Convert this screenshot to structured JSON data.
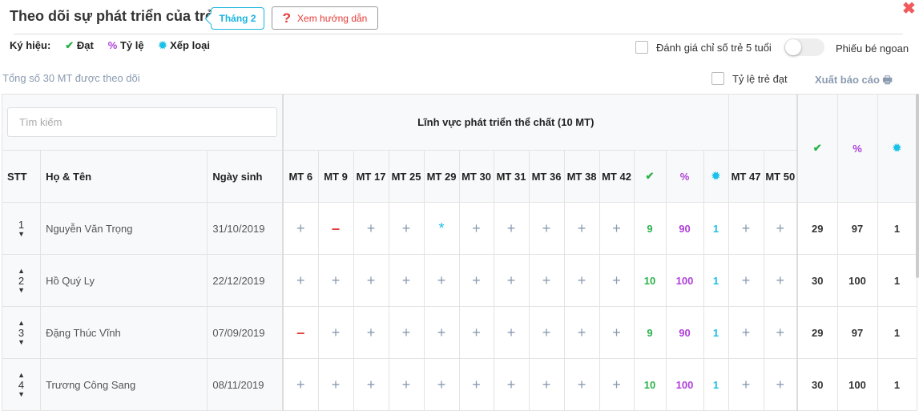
{
  "header": {
    "title": "Theo dõi sự phát triển của trẻ",
    "month": "Tháng 2",
    "guide_icon": "?",
    "guide": "Xem hướng dẫn",
    "close": "✖"
  },
  "legend": {
    "label": "Ký hiệu:",
    "dat_icon": "✔",
    "dat": "Đạt",
    "tyle_icon": "%",
    "tyle": "Tỷ lệ",
    "xeploai_icon": "✹",
    "xeploai": "Xếp loại"
  },
  "total": "Tổng số 30 MT được theo dõi",
  "options": {
    "chk5": "Đánh giá chỉ số trẻ 5 tuổi",
    "ngoan": "Phiếu bé ngoan",
    "ratio": "Tỷ lệ trẻ đạt",
    "export": "Xuất báo cáo",
    "export_icon": "🖶"
  },
  "colors": {
    "green": "#2bb24c",
    "purple": "#b040d8",
    "cyan": "#19c0e8",
    "red": "#e53935"
  },
  "table": {
    "search_placeholder": "Tìm kiếm",
    "group": "Lĩnh vực phát triển thể chất (10 MT)",
    "cols": {
      "stt": "STT",
      "name": "Họ & Tên",
      "dob": "Ngày sinh"
    },
    "mt": [
      "MT 6",
      "MT 9",
      "MT 17",
      "MT 25",
      "MT 29",
      "MT 30",
      "MT 31",
      "MT 36",
      "MT 38",
      "MT 42"
    ],
    "mt2": [
      "MT 47",
      "MT 50"
    ],
    "sym": {
      "check": "✔",
      "pct": "%",
      "star": "✹"
    },
    "rows": [
      {
        "stt": "1",
        "name": "Nguyễn Văn Trọng",
        "dob": "31/10/2019",
        "marks": [
          "+",
          "-",
          "+",
          "+",
          "*",
          "+",
          "+",
          "+",
          "+",
          "+"
        ],
        "dat": "9",
        "pct": "90",
        "xl": "1",
        "marks2": [
          "+",
          "+"
        ],
        "t_dat": "29",
        "t_pct": "97",
        "t_xl": "1",
        "up": false
      },
      {
        "stt": "2",
        "name": "Hồ Quý Ly",
        "dob": "22/12/2019",
        "marks": [
          "+",
          "+",
          "+",
          "+",
          "+",
          "+",
          "+",
          "+",
          "+",
          "+"
        ],
        "dat": "10",
        "pct": "100",
        "xl": "1",
        "marks2": [
          "+",
          "+"
        ],
        "t_dat": "30",
        "t_pct": "100",
        "t_xl": "1",
        "up": true
      },
      {
        "stt": "3",
        "name": "Đặng Thúc Vĩnh",
        "dob": "07/09/2019",
        "marks": [
          "-",
          "+",
          "+",
          "+",
          "+",
          "+",
          "+",
          "+",
          "+",
          "+"
        ],
        "dat": "9",
        "pct": "90",
        "xl": "1",
        "marks2": [
          "+",
          "+"
        ],
        "t_dat": "29",
        "t_pct": "97",
        "t_xl": "1",
        "up": true
      },
      {
        "stt": "4",
        "name": "Trương Công Sang",
        "dob": "08/11/2019",
        "marks": [
          "+",
          "+",
          "+",
          "+",
          "+",
          "+",
          "+",
          "+",
          "+",
          "+"
        ],
        "dat": "10",
        "pct": "100",
        "xl": "1",
        "marks2": [
          "+",
          "+"
        ],
        "t_dat": "30",
        "t_pct": "100",
        "t_xl": "1",
        "up": true
      }
    ]
  }
}
